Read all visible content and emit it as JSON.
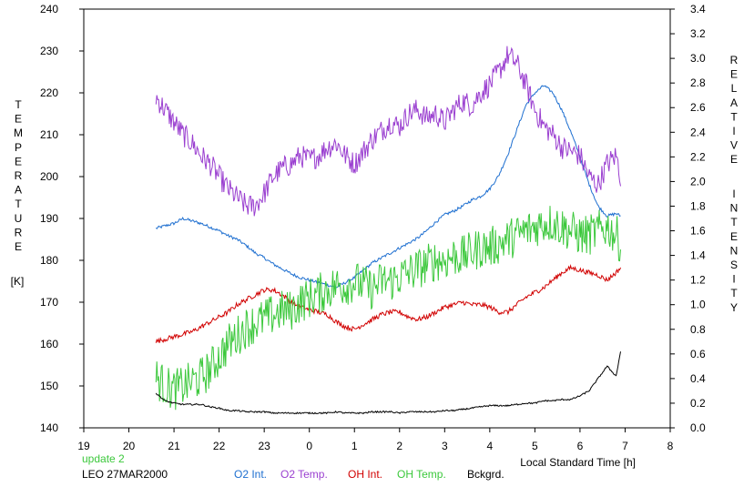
{
  "chart_data": {
    "type": "line",
    "xlabel": "Local Standard Time [h]",
    "ylabel_left_letters": [
      "T",
      "E",
      "M",
      "P",
      "E",
      "R",
      "A",
      "T",
      "U",
      "R",
      "E"
    ],
    "ylabel_left_unit": "[K]",
    "ylabel_right_letters_1": [
      "R",
      "E",
      "L",
      "A",
      "T",
      "I",
      "V",
      "E"
    ],
    "ylabel_right_letters_2": [
      "I",
      "N",
      "T",
      "E",
      "N",
      "S",
      "I",
      "T",
      "Y"
    ],
    "x_ticks": [
      "19",
      "20",
      "21",
      "22",
      "23",
      "0",
      "1",
      "2",
      "3",
      "4",
      "5",
      "6",
      "7",
      "8"
    ],
    "xlim": [
      19,
      32
    ],
    "ylim_left": [
      140,
      240
    ],
    "ylim_right": [
      0.0,
      3.4
    ],
    "y_left_ticks": [
      "140",
      "150",
      "160",
      "170",
      "180",
      "190",
      "200",
      "210",
      "220",
      "230",
      "240"
    ],
    "y_right_ticks": [
      "0.0",
      "0.2",
      "0.4",
      "0.6",
      "0.8",
      "1.0",
      "1.2",
      "1.4",
      "1.6",
      "1.8",
      "2.0",
      "2.2",
      "2.4",
      "2.6",
      "2.8",
      "3.0",
      "3.2",
      "3.4"
    ],
    "grid": false,
    "series": [
      {
        "name": "O2 Int.",
        "axis": "right",
        "color": "#1e6fd0",
        "noise": 0.012,
        "x": [
          20.6,
          20.8,
          21.0,
          21.2,
          21.4,
          21.6,
          21.8,
          22.0,
          22.2,
          22.4,
          22.6,
          22.8,
          23.0,
          23.2,
          23.4,
          23.6,
          23.8,
          24.0,
          24.2,
          24.4,
          24.6,
          24.8,
          25.0,
          25.2,
          25.4,
          25.6,
          25.8,
          26.0,
          26.2,
          26.4,
          26.6,
          26.8,
          27.0,
          27.2,
          27.4,
          27.6,
          27.8,
          28.0,
          28.2,
          28.4,
          28.6,
          28.8,
          29.0,
          29.2,
          29.4,
          29.6,
          29.8,
          30.0,
          30.2,
          30.4,
          30.6,
          30.8,
          30.9
        ],
        "y": [
          1.62,
          1.64,
          1.66,
          1.7,
          1.68,
          1.66,
          1.63,
          1.6,
          1.56,
          1.53,
          1.48,
          1.42,
          1.38,
          1.33,
          1.29,
          1.25,
          1.22,
          1.2,
          1.18,
          1.16,
          1.14,
          1.18,
          1.22,
          1.28,
          1.34,
          1.38,
          1.42,
          1.46,
          1.5,
          1.54,
          1.6,
          1.67,
          1.73,
          1.76,
          1.8,
          1.85,
          1.88,
          1.94,
          2.05,
          2.22,
          2.42,
          2.62,
          2.72,
          2.78,
          2.72,
          2.58,
          2.4,
          2.2,
          1.98,
          1.8,
          1.72,
          1.74,
          1.72
        ]
      },
      {
        "name": "O2 Temp.",
        "axis": "left",
        "color": "#9a3fd0",
        "noise": 2.8,
        "x": [
          20.6,
          20.8,
          21.0,
          21.2,
          21.4,
          21.6,
          21.8,
          22.0,
          22.2,
          22.4,
          22.6,
          22.8,
          23.0,
          23.2,
          23.4,
          23.6,
          23.8,
          24.0,
          24.2,
          24.4,
          24.6,
          24.8,
          25.0,
          25.2,
          25.4,
          25.6,
          25.8,
          26.0,
          26.2,
          26.4,
          26.6,
          26.8,
          27.0,
          27.2,
          27.4,
          27.6,
          27.8,
          28.0,
          28.2,
          28.4,
          28.6,
          28.8,
          29.0,
          29.2,
          29.4,
          29.6,
          29.8,
          30.0,
          30.2,
          30.4,
          30.6,
          30.8,
          30.9
        ],
        "y": [
          219,
          216,
          213,
          210,
          208,
          205,
          203,
          200,
          197,
          195,
          193,
          193,
          196,
          200,
          202,
          203,
          205,
          204,
          205,
          207,
          208,
          205,
          203,
          206,
          209,
          211,
          213,
          212,
          215,
          216,
          214,
          215,
          213,
          216,
          218,
          217,
          220,
          222,
          225,
          229,
          227,
          222,
          216,
          212,
          210,
          207,
          206,
          205,
          200,
          198,
          203,
          205,
          200
        ]
      },
      {
        "name": "OH Int.",
        "axis": "right",
        "color": "#d10000",
        "noise": 0.02,
        "x": [
          20.6,
          20.8,
          21.0,
          21.2,
          21.4,
          21.6,
          21.8,
          22.0,
          22.2,
          22.4,
          22.6,
          22.8,
          23.0,
          23.2,
          23.4,
          23.6,
          23.8,
          24.0,
          24.2,
          24.4,
          24.6,
          24.8,
          25.0,
          25.2,
          25.4,
          25.6,
          25.8,
          26.0,
          26.2,
          26.4,
          26.6,
          26.8,
          27.0,
          27.2,
          27.4,
          27.6,
          27.8,
          28.0,
          28.2,
          28.4,
          28.6,
          28.8,
          29.0,
          29.2,
          29.4,
          29.6,
          29.8,
          30.0,
          30.2,
          30.4,
          30.6,
          30.8,
          30.9
        ],
        "y": [
          0.7,
          0.72,
          0.74,
          0.76,
          0.78,
          0.82,
          0.86,
          0.9,
          0.94,
          1.0,
          1.04,
          1.08,
          1.12,
          1.12,
          1.08,
          1.02,
          0.98,
          0.96,
          0.94,
          0.92,
          0.86,
          0.82,
          0.8,
          0.84,
          0.88,
          0.92,
          0.94,
          0.94,
          0.9,
          0.88,
          0.9,
          0.94,
          0.98,
          1.0,
          1.02,
          1.0,
          1.0,
          0.98,
          0.94,
          0.94,
          1.0,
          1.06,
          1.1,
          1.14,
          1.2,
          1.26,
          1.3,
          1.28,
          1.26,
          1.24,
          1.2,
          1.26,
          1.3
        ]
      },
      {
        "name": "OH Temp.",
        "axis": "left",
        "color": "#3cc83c",
        "noise": 5.0,
        "x": [
          20.6,
          20.8,
          21.0,
          21.2,
          21.4,
          21.6,
          21.8,
          22.0,
          22.2,
          22.4,
          22.6,
          22.8,
          23.0,
          23.2,
          23.4,
          23.6,
          23.8,
          24.0,
          24.2,
          24.4,
          24.6,
          24.8,
          25.0,
          25.2,
          25.4,
          25.6,
          25.8,
          26.0,
          26.2,
          26.4,
          26.6,
          26.8,
          27.0,
          27.2,
          27.4,
          27.6,
          27.8,
          28.0,
          28.2,
          28.4,
          28.6,
          28.8,
          29.0,
          29.2,
          29.4,
          29.6,
          29.8,
          30.0,
          30.2,
          30.4,
          30.6,
          30.8,
          30.9
        ],
        "y": [
          152,
          150,
          149,
          150,
          151,
          152,
          154,
          157,
          160,
          162,
          164,
          165,
          166,
          167,
          168,
          168,
          170,
          171,
          172,
          173,
          174,
          174,
          175,
          174,
          173,
          175,
          175,
          176,
          177,
          178,
          179,
          180,
          180,
          181,
          181,
          182,
          183,
          183,
          184,
          185,
          186,
          187,
          188,
          189,
          189,
          188,
          187,
          186,
          186,
          187,
          188,
          186,
          184
        ]
      },
      {
        "name": "Bckgrd.",
        "axis": "right",
        "color": "#000000",
        "noise": 0.006,
        "x": [
          20.6,
          20.8,
          21.0,
          21.2,
          21.4,
          21.6,
          21.8,
          22.0,
          22.2,
          22.4,
          22.6,
          22.8,
          23.0,
          23.2,
          23.4,
          23.6,
          23.8,
          24.0,
          24.2,
          24.4,
          24.6,
          24.8,
          25.0,
          25.2,
          25.4,
          25.6,
          25.8,
          26.0,
          26.2,
          26.4,
          26.6,
          26.8,
          27.0,
          27.2,
          27.4,
          27.6,
          27.8,
          28.0,
          28.2,
          28.4,
          28.6,
          28.8,
          29.0,
          29.2,
          29.4,
          29.6,
          29.8,
          30.0,
          30.2,
          30.4,
          30.6,
          30.8,
          30.9
        ],
        "y": [
          0.28,
          0.22,
          0.2,
          0.19,
          0.19,
          0.19,
          0.17,
          0.16,
          0.14,
          0.14,
          0.13,
          0.13,
          0.13,
          0.12,
          0.12,
          0.12,
          0.12,
          0.12,
          0.12,
          0.12,
          0.13,
          0.12,
          0.12,
          0.12,
          0.13,
          0.13,
          0.13,
          0.12,
          0.13,
          0.13,
          0.13,
          0.13,
          0.14,
          0.14,
          0.15,
          0.16,
          0.17,
          0.18,
          0.18,
          0.18,
          0.19,
          0.2,
          0.2,
          0.22,
          0.22,
          0.23,
          0.23,
          0.26,
          0.3,
          0.4,
          0.5,
          0.42,
          0.62
        ]
      }
    ]
  },
  "footer": {
    "update": "update 2",
    "site_date": "LEO 27MAR2000",
    "legend_o2_int": "O2 Int.",
    "legend_o2_temp": "O2 Temp.",
    "legend_oh_int": "OH Int.",
    "legend_oh_temp": "OH Temp.",
    "legend_bckgrd": "Bckgrd.",
    "color_update": "#3cc83c"
  }
}
